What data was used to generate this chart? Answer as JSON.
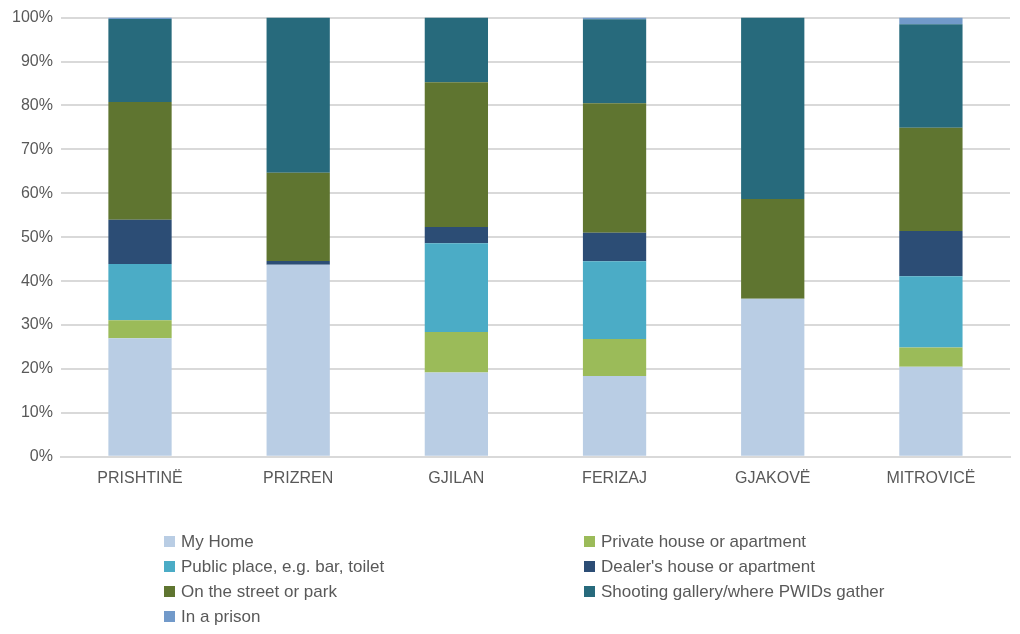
{
  "chart_data": {
    "type": "bar",
    "stacked": true,
    "categories": [
      "PRISHTINË",
      "PRIZREN",
      "GJILAN",
      "FERIZAJ",
      "GJAKOVË",
      "MITROVICË"
    ],
    "series": [
      {
        "name": "My Home",
        "color": "#b9cde4",
        "values": [
          27.0,
          43.7,
          19.2,
          18.4,
          36.0,
          20.5
        ]
      },
      {
        "name": "Private house or apartment",
        "color": "#9bbb59",
        "values": [
          4.1,
          0,
          9.2,
          8.4,
          0,
          4.4
        ]
      },
      {
        "name": "Public place, e.g. bar, toilet",
        "color": "#4bacc6",
        "values": [
          12.8,
          0,
          20.2,
          17.7,
          0,
          16.2
        ]
      },
      {
        "name": "Dealer's house or apartment",
        "color": "#2c4d75",
        "values": [
          10.1,
          0.9,
          3.7,
          6.5,
          0,
          10.3
        ]
      },
      {
        "name": "On the street or park",
        "color": "#5f7530",
        "values": [
          26.8,
          20.1,
          33.0,
          29.5,
          22.7,
          23.5
        ]
      },
      {
        "name": "Shooting gallery/where PWIDs gather",
        "color": "#276a7c",
        "values": [
          18.9,
          35.3,
          14.7,
          19.1,
          41.3,
          23.6
        ]
      },
      {
        "name": "In a prison",
        "color": "#729aca",
        "values": [
          0.3,
          0,
          0,
          0.4,
          0,
          1.5
        ]
      }
    ],
    "ylim": [
      0,
      100
    ],
    "yticks": [
      {
        "value": 0,
        "label": "0%"
      },
      {
        "value": 10,
        "label": "10%"
      },
      {
        "value": 20,
        "label": "20%"
      },
      {
        "value": 30,
        "label": "30%"
      },
      {
        "value": 40,
        "label": "40%"
      },
      {
        "value": 50,
        "label": "50%"
      },
      {
        "value": 60,
        "label": "60%"
      },
      {
        "value": 70,
        "label": "70%"
      },
      {
        "value": 80,
        "label": "80%"
      },
      {
        "value": 90,
        "label": "90%"
      },
      {
        "value": 100,
        "label": "100%"
      }
    ],
    "grid": "y",
    "legend": "bottom"
  }
}
